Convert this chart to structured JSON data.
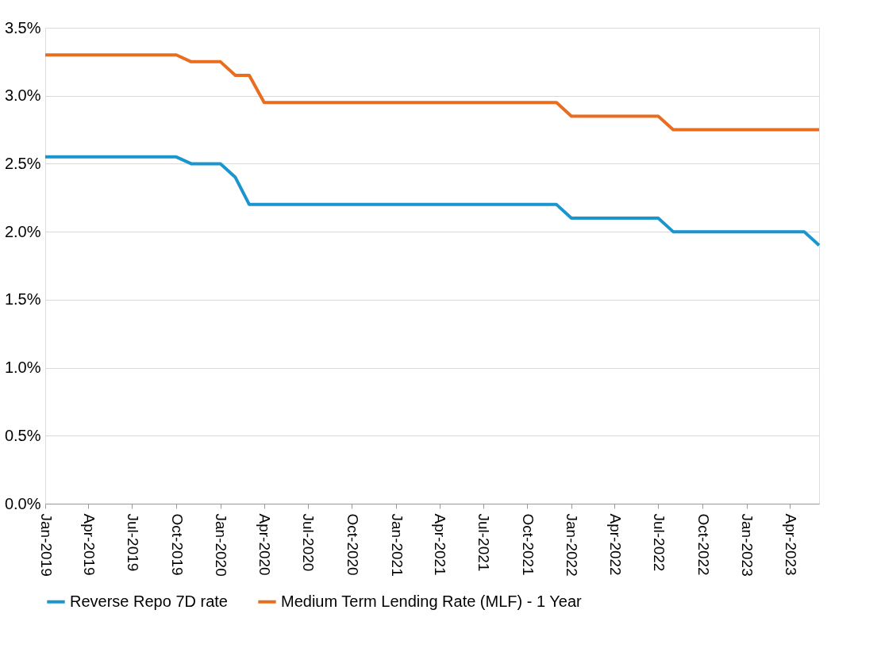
{
  "chart_data": {
    "type": "line",
    "x": [
      "2019-01",
      "2019-02",
      "2019-03",
      "2019-04",
      "2019-05",
      "2019-06",
      "2019-07",
      "2019-08",
      "2019-09",
      "2019-10",
      "2019-11",
      "2019-12",
      "2020-01",
      "2020-02",
      "2020-03",
      "2020-04",
      "2020-05",
      "2020-06",
      "2020-07",
      "2020-08",
      "2020-09",
      "2020-10",
      "2020-11",
      "2020-12",
      "2021-01",
      "2021-02",
      "2021-03",
      "2021-04",
      "2021-05",
      "2021-06",
      "2021-07",
      "2021-08",
      "2021-09",
      "2021-10",
      "2021-11",
      "2021-12",
      "2022-01",
      "2022-02",
      "2022-03",
      "2022-04",
      "2022-05",
      "2022-06",
      "2022-07",
      "2022-08",
      "2022-09",
      "2022-10",
      "2022-11",
      "2022-12",
      "2023-01",
      "2023-02",
      "2023-03",
      "2023-04",
      "2023-05",
      "2023-06"
    ],
    "series": [
      {
        "name": "Reverse Repo 7D rate",
        "color": "#1b95ce",
        "values": [
          2.55,
          2.55,
          2.55,
          2.55,
          2.55,
          2.55,
          2.55,
          2.55,
          2.55,
          2.55,
          2.5,
          2.5,
          2.5,
          2.4,
          2.2,
          2.2,
          2.2,
          2.2,
          2.2,
          2.2,
          2.2,
          2.2,
          2.2,
          2.2,
          2.2,
          2.2,
          2.2,
          2.2,
          2.2,
          2.2,
          2.2,
          2.2,
          2.2,
          2.2,
          2.2,
          2.2,
          2.1,
          2.1,
          2.1,
          2.1,
          2.1,
          2.1,
          2.1,
          2.0,
          2.0,
          2.0,
          2.0,
          2.0,
          2.0,
          2.0,
          2.0,
          2.0,
          2.0,
          1.9
        ]
      },
      {
        "name": "Medium Term Lending Rate (MLF) - 1 Year",
        "color": "#e96d1f",
        "values": [
          3.3,
          3.3,
          3.3,
          3.3,
          3.3,
          3.3,
          3.3,
          3.3,
          3.3,
          3.3,
          3.25,
          3.25,
          3.25,
          3.15,
          3.15,
          2.95,
          2.95,
          2.95,
          2.95,
          2.95,
          2.95,
          2.95,
          2.95,
          2.95,
          2.95,
          2.95,
          2.95,
          2.95,
          2.95,
          2.95,
          2.95,
          2.95,
          2.95,
          2.95,
          2.95,
          2.95,
          2.85,
          2.85,
          2.85,
          2.85,
          2.85,
          2.85,
          2.85,
          2.75,
          2.75,
          2.75,
          2.75,
          2.75,
          2.75,
          2.75,
          2.75,
          2.75,
          2.75,
          2.75
        ]
      }
    ],
    "xlim": [
      "2019-01",
      "2023-06"
    ],
    "xticks": [
      {
        "value": "2019-01",
        "label": "Jan-2019"
      },
      {
        "value": "2019-04",
        "label": "Apr-2019"
      },
      {
        "value": "2019-07",
        "label": "Jul-2019"
      },
      {
        "value": "2019-10",
        "label": "Oct-2019"
      },
      {
        "value": "2020-01",
        "label": "Jan-2020"
      },
      {
        "value": "2020-04",
        "label": "Apr-2020"
      },
      {
        "value": "2020-07",
        "label": "Jul-2020"
      },
      {
        "value": "2020-10",
        "label": "Oct-2020"
      },
      {
        "value": "2021-01",
        "label": "Jan-2021"
      },
      {
        "value": "2021-04",
        "label": "Apr-2021"
      },
      {
        "value": "2021-07",
        "label": "Jul-2021"
      },
      {
        "value": "2021-10",
        "label": "Oct-2021"
      },
      {
        "value": "2022-01",
        "label": "Jan-2022"
      },
      {
        "value": "2022-04",
        "label": "Apr-2022"
      },
      {
        "value": "2022-07",
        "label": "Jul-2022"
      },
      {
        "value": "2022-10",
        "label": "Oct-2022"
      },
      {
        "value": "2023-01",
        "label": "Jan-2023"
      },
      {
        "value": "2023-04",
        "label": "Apr-2023"
      }
    ],
    "ylim": [
      0,
      3.5
    ],
    "yticks": [
      {
        "value": 0,
        "label": "0.0%"
      },
      {
        "value": 0.5,
        "label": "0.5%"
      },
      {
        "value": 1,
        "label": "1.0%"
      },
      {
        "value": 1.5,
        "label": "1.5%"
      },
      {
        "value": 2,
        "label": "2.0%"
      },
      {
        "value": 2.5,
        "label": "2.5%"
      },
      {
        "value": 3,
        "label": "3.0%"
      },
      {
        "value": 3.5,
        "label": "3.5%"
      }
    ],
    "grid": "y",
    "legend": "bottom",
    "marker": "none",
    "line_style": "solid"
  }
}
